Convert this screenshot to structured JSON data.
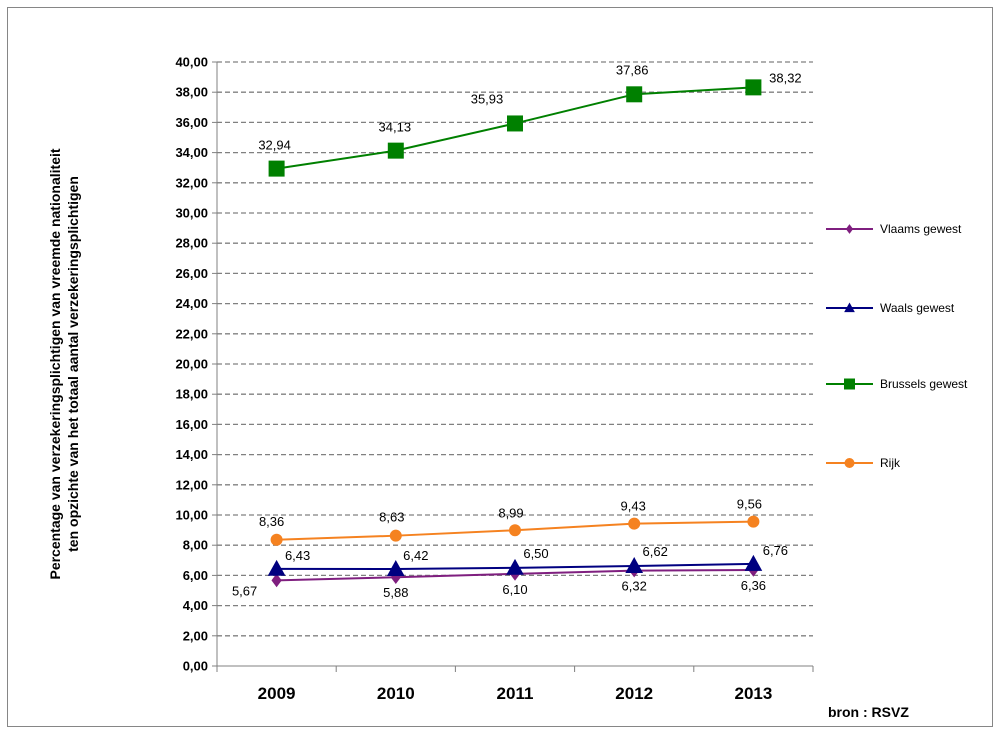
{
  "chart_data": {
    "type": "line",
    "categories": [
      "2009",
      "2010",
      "2011",
      "2012",
      "2013"
    ],
    "ylabel_lines": [
      "Percentage van verzekeringsplichtigen van vreemde nationaliteit",
      "ten opzichte van het totaal aantal verzekeringsplichtigen"
    ],
    "ylim": [
      0,
      40
    ],
    "ytick_step": 2,
    "ytick_labels": [
      "0,00",
      "2,00",
      "4,00",
      "6,00",
      "8,00",
      "10,00",
      "12,00",
      "14,00",
      "16,00",
      "18,00",
      "20,00",
      "22,00",
      "24,00",
      "26,00",
      "28,00",
      "30,00",
      "32,00",
      "34,00",
      "36,00",
      "38,00",
      "40,00"
    ],
    "grid": true,
    "legend_position": "right",
    "source": "bron : RSVZ",
    "series": [
      {
        "name": "Vlaams gewest",
        "color": "#7F1F7F",
        "marker": "diamond",
        "values": [
          5.67,
          5.88,
          6.1,
          6.32,
          6.36
        ],
        "labels": [
          "5,67",
          "5,88",
          "6,10",
          "6,32",
          "6,36"
        ]
      },
      {
        "name": "Waals gewest",
        "color": "#000080",
        "marker": "triangle",
        "values": [
          6.43,
          6.42,
          6.5,
          6.62,
          6.76
        ],
        "labels": [
          "6,43",
          "6,42",
          "6,50",
          "6,62",
          "6,76"
        ]
      },
      {
        "name": "Brussels gewest",
        "color": "#008000",
        "marker": "square",
        "values": [
          32.94,
          34.13,
          35.93,
          37.86,
          38.32
        ],
        "labels": [
          "32,94",
          "34,13",
          "35,93",
          "37,86",
          "38,32"
        ]
      },
      {
        "name": "Rijk",
        "color": "#F58220",
        "marker": "circle",
        "values": [
          8.36,
          8.63,
          8.99,
          9.43,
          9.56
        ],
        "labels": [
          "8,36",
          "8,63",
          "8,99",
          "9,43",
          "9,56"
        ]
      }
    ]
  }
}
